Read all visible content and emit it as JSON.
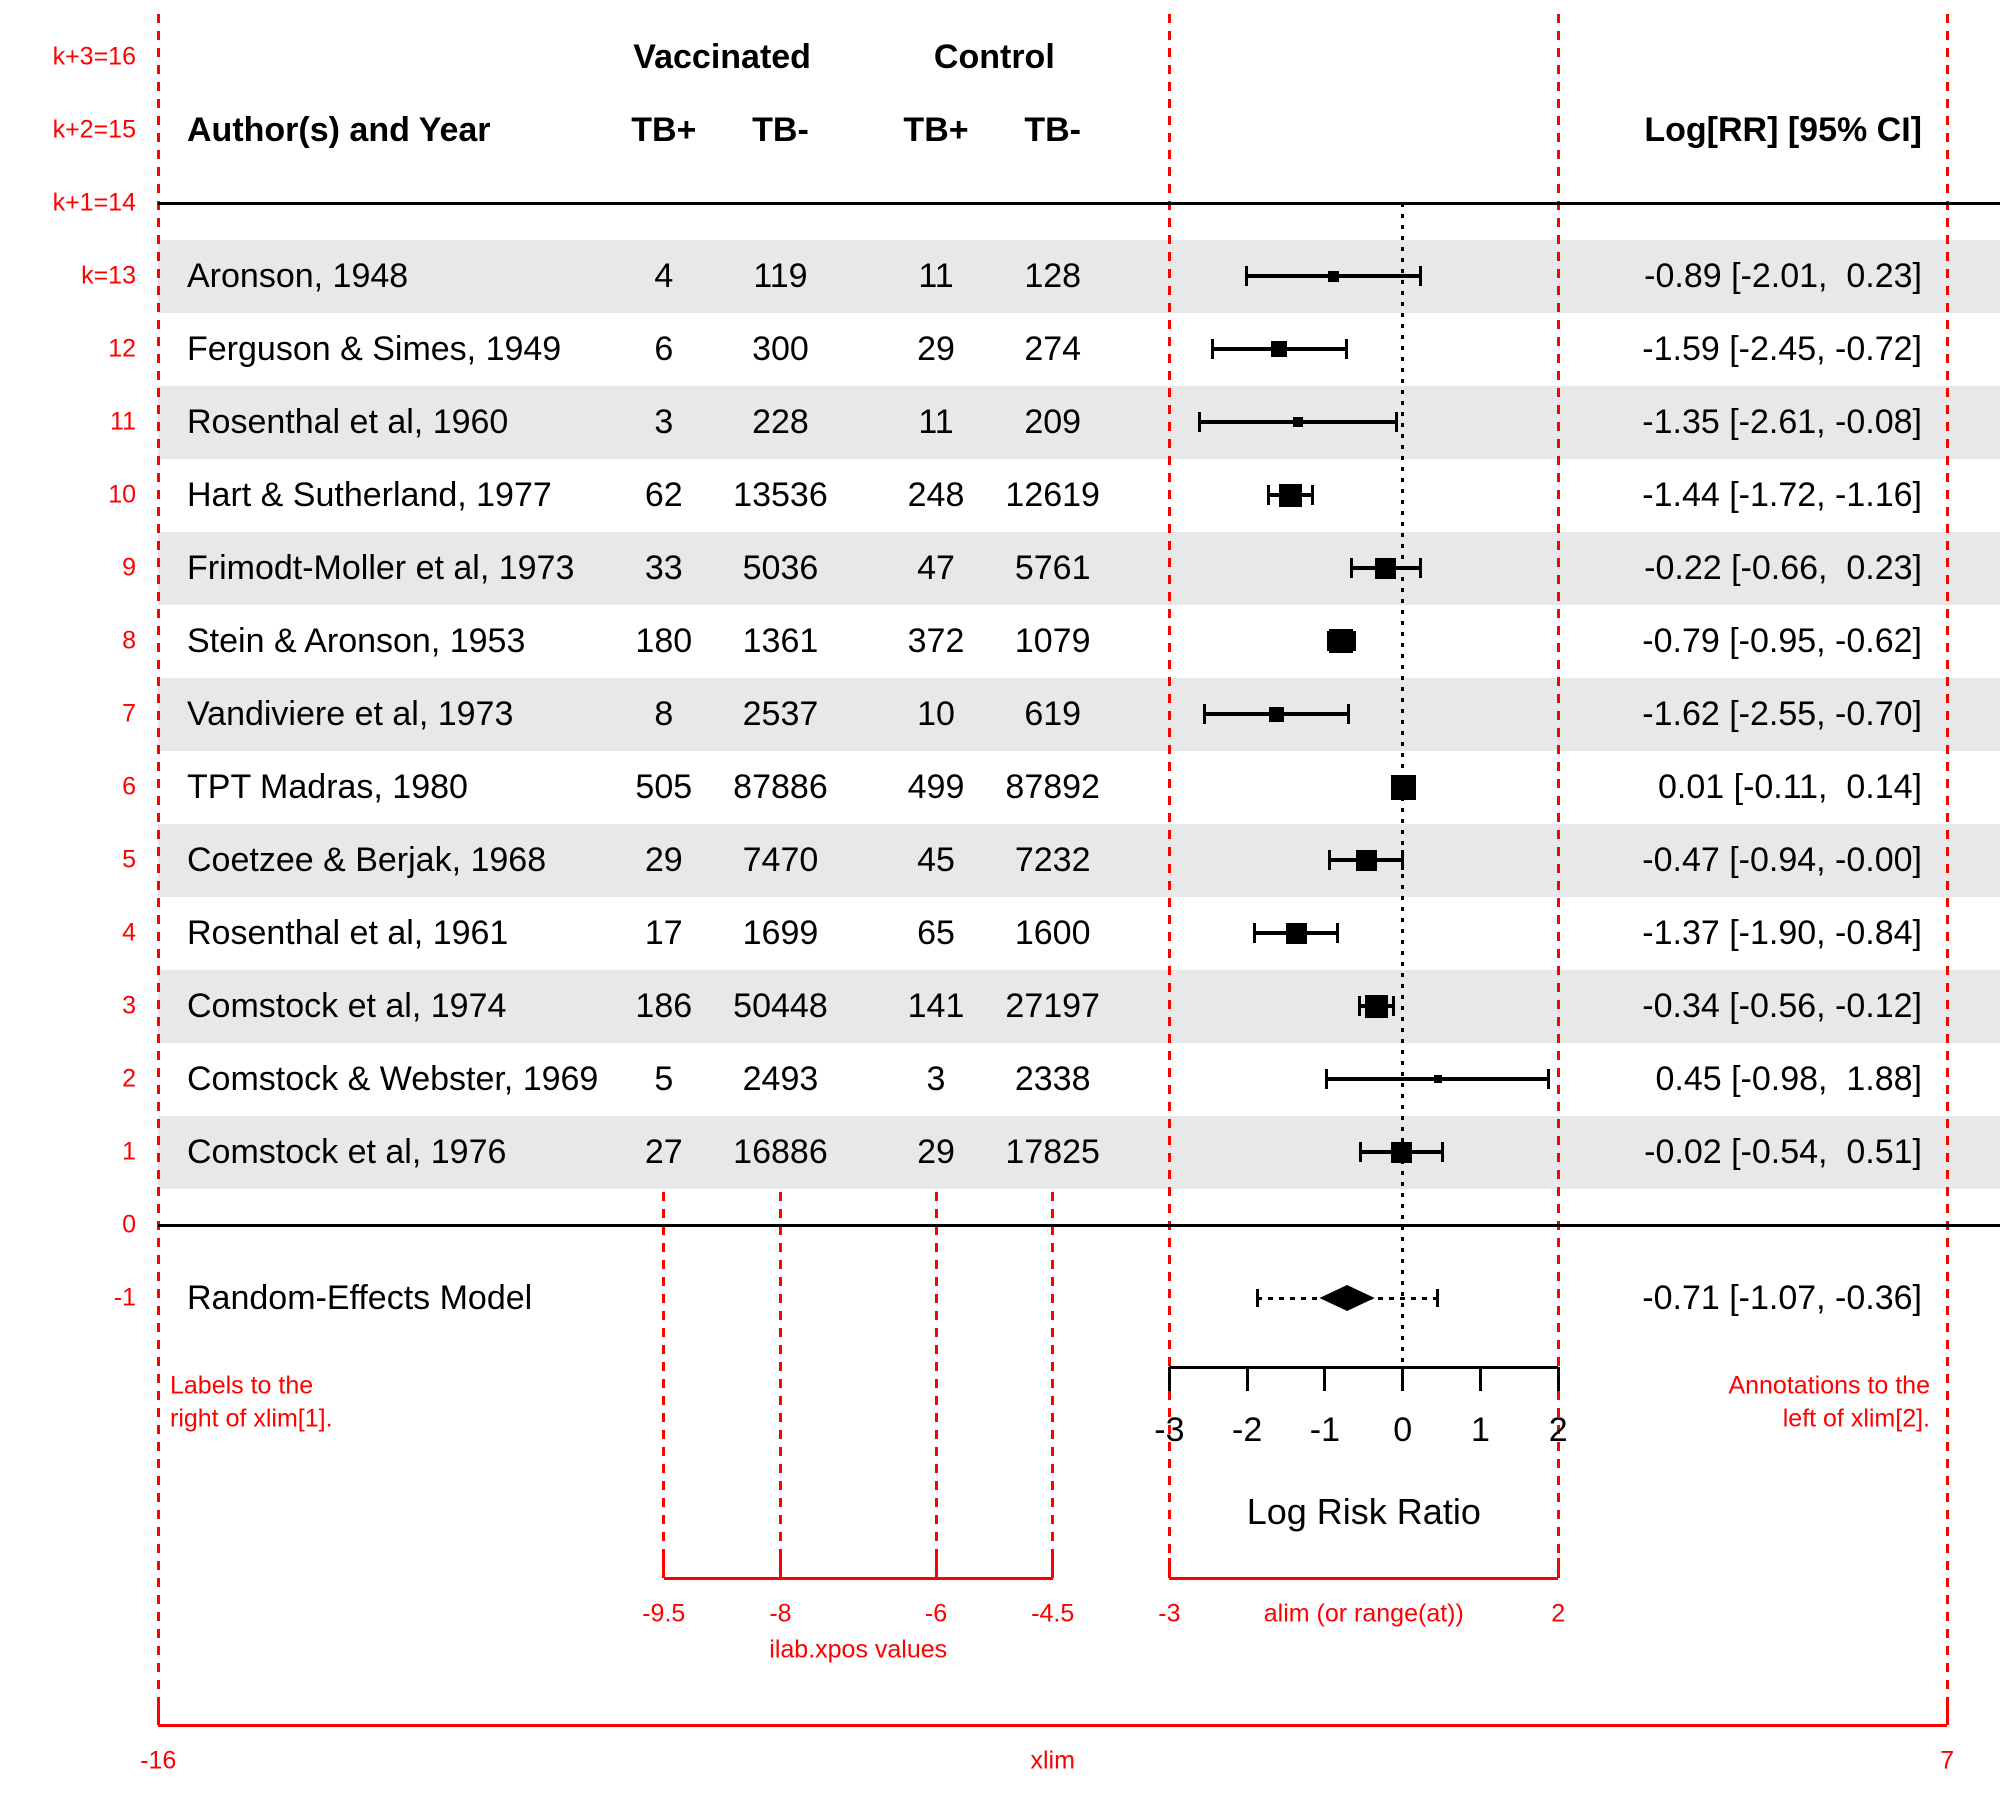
{
  "colors": {
    "accent_red": "#fe0000",
    "stripe_gray": "#e8e8e8",
    "text_black": "#000000"
  },
  "header": {
    "group_vaccinated": "Vaccinated",
    "group_control": "Control",
    "author": "Author(s) and Year",
    "col_tb_pos": "TB+",
    "col_tb_neg": "TB-",
    "annotation": "Log[RR] [95% CI]"
  },
  "red_annotations": {
    "row_labels": [
      {
        "row": 16,
        "text": "k+3=16"
      },
      {
        "row": 15,
        "text": "k+2=15"
      },
      {
        "row": 14,
        "text": "k+1=14"
      },
      {
        "row": 13,
        "text": "k=13"
      },
      {
        "row": 12,
        "text": "12"
      },
      {
        "row": 11,
        "text": "11"
      },
      {
        "row": 10,
        "text": "10"
      },
      {
        "row": 9,
        "text": "9"
      },
      {
        "row": 8,
        "text": "8"
      },
      {
        "row": 7,
        "text": "7"
      },
      {
        "row": 6,
        "text": "6"
      },
      {
        "row": 5,
        "text": "5"
      },
      {
        "row": 4,
        "text": "4"
      },
      {
        "row": 3,
        "text": "3"
      },
      {
        "row": 2,
        "text": "2"
      },
      {
        "row": 1,
        "text": "1"
      },
      {
        "row": 0,
        "text": "0"
      },
      {
        "row": -1,
        "text": "-1"
      }
    ],
    "left_note_line1": "Labels to the",
    "left_note_line2": "right of xlim[1].",
    "right_note_line1": "Annotations to the",
    "right_note_line2": "left of xlim[2].",
    "ilab_axis_labels": [
      "-9.5",
      "-8",
      "-6",
      "-4.5"
    ],
    "ilab_caption": "ilab.xpos values",
    "alim_axis_labels": [
      "-3",
      "2"
    ],
    "alim_caption": "alim (or range(at))",
    "xlim_axis_labels": [
      "-16",
      "7"
    ],
    "xlim_caption": "xlim"
  },
  "chart_data": {
    "type": "forest",
    "xlab": "Log Risk Ratio",
    "xlim": [
      -16,
      7
    ],
    "alim": [
      -3,
      2
    ],
    "at": [
      -3,
      -2,
      -1,
      0,
      1,
      2
    ],
    "at_labels": [
      "-3",
      "-2",
      "-1",
      "0",
      "1",
      "2"
    ],
    "ilab_xpos": [
      -9.5,
      -8,
      -6,
      -4.5
    ],
    "studies": [
      {
        "row": 13,
        "label": "Aronson, 1948",
        "ilab": [
          "4",
          "119",
          "11",
          "128"
        ],
        "est": -0.89,
        "lo": -2.01,
        "hi": 0.23,
        "annotation": "-0.89 [-2.01,  0.23]",
        "psize": 11,
        "shaded": true
      },
      {
        "row": 12,
        "label": "Ferguson & Simes, 1949",
        "ilab": [
          "6",
          "300",
          "29",
          "274"
        ],
        "est": -1.59,
        "lo": -2.45,
        "hi": -0.72,
        "annotation": "-1.59 [-2.45, -0.72]",
        "psize": 16,
        "shaded": false
      },
      {
        "row": 11,
        "label": "Rosenthal et al, 1960",
        "ilab": [
          "3",
          "228",
          "11",
          "209"
        ],
        "est": -1.35,
        "lo": -2.61,
        "hi": -0.08,
        "annotation": "-1.35 [-2.61, -0.08]",
        "psize": 10,
        "shaded": true
      },
      {
        "row": 10,
        "label": "Hart & Sutherland, 1977",
        "ilab": [
          "62",
          "13536",
          "248",
          "12619"
        ],
        "est": -1.44,
        "lo": -1.72,
        "hi": -1.16,
        "annotation": "-1.44 [-1.72, -1.16]",
        "psize": 23,
        "shaded": false
      },
      {
        "row": 9,
        "label": "Frimodt-Moller et al, 1973",
        "ilab": [
          "33",
          "5036",
          "47",
          "5761"
        ],
        "est": -0.22,
        "lo": -0.66,
        "hi": 0.23,
        "annotation": "-0.22 [-0.66,  0.23]",
        "psize": 21,
        "shaded": true
      },
      {
        "row": 8,
        "label": "Stein & Aronson, 1953",
        "ilab": [
          "180",
          "1361",
          "372",
          "1079"
        ],
        "est": -0.79,
        "lo": -0.95,
        "hi": -0.62,
        "annotation": "-0.79 [-0.95, -0.62]",
        "psize": 24,
        "shaded": false
      },
      {
        "row": 7,
        "label": "Vandiviere et al, 1973",
        "ilab": [
          "8",
          "2537",
          "10",
          "619"
        ],
        "est": -1.62,
        "lo": -2.55,
        "hi": -0.7,
        "annotation": "-1.62 [-2.55, -0.70]",
        "psize": 15,
        "shaded": true
      },
      {
        "row": 6,
        "label": "TPT Madras, 1980",
        "ilab": [
          "505",
          "87886",
          "499",
          "87892"
        ],
        "est": 0.01,
        "lo": -0.11,
        "hi": 0.14,
        "annotation": "0.01 [-0.11,  0.14]",
        "psize": 25,
        "shaded": false
      },
      {
        "row": 5,
        "label": "Coetzee & Berjak, 1968",
        "ilab": [
          "29",
          "7470",
          "45",
          "7232"
        ],
        "est": -0.47,
        "lo": -0.94,
        "hi": -0.004,
        "annotation": "-0.47 [-0.94, -0.00]",
        "psize": 21,
        "shaded": true
      },
      {
        "row": 4,
        "label": "Rosenthal et al, 1961",
        "ilab": [
          "17",
          "1699",
          "65",
          "1600"
        ],
        "est": -1.37,
        "lo": -1.9,
        "hi": -0.84,
        "annotation": "-1.37 [-1.90, -0.84]",
        "psize": 21,
        "shaded": false
      },
      {
        "row": 3,
        "label": "Comstock et al, 1974",
        "ilab": [
          "186",
          "50448",
          "141",
          "27197"
        ],
        "est": -0.34,
        "lo": -0.56,
        "hi": -0.12,
        "annotation": "-0.34 [-0.56, -0.12]",
        "psize": 23,
        "shaded": true
      },
      {
        "row": 2,
        "label": "Comstock & Webster, 1969",
        "ilab": [
          "5",
          "2493",
          "3",
          "2338"
        ],
        "est": 0.45,
        "lo": -0.98,
        "hi": 1.88,
        "annotation": "0.45 [-0.98,  1.88]",
        "psize": 8,
        "shaded": false
      },
      {
        "row": 1,
        "label": "Comstock et al, 1976",
        "ilab": [
          "27",
          "16886",
          "29",
          "17825"
        ],
        "est": -0.02,
        "lo": -0.54,
        "hi": 0.51,
        "annotation": "-0.02 [-0.54,  0.51]",
        "psize": 21,
        "shaded": true
      }
    ],
    "summary": {
      "row": -1,
      "label": "Random-Effects Model",
      "est": -0.71,
      "lo": -1.07,
      "hi": -0.36,
      "pred_lo": -1.87,
      "pred_hi": 0.45,
      "annotation": "-0.71 [-1.07, -0.36]"
    }
  }
}
